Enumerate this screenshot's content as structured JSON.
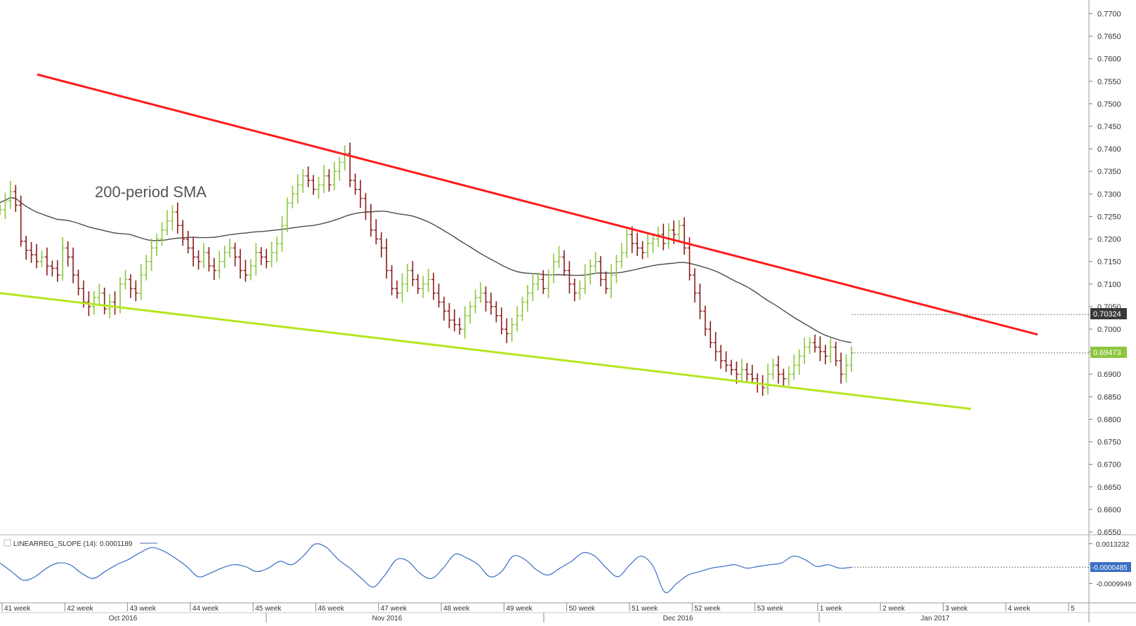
{
  "chart_data": [
    {
      "type": "candlestick",
      "symbol_hint": "",
      "y_ticks": [
        "0.7700",
        "0.7650",
        "0.7600",
        "0.7550",
        "0.7500",
        "0.7450",
        "0.7400",
        "0.7350",
        "0.7300",
        "0.7250",
        "0.7200",
        "0.7150",
        "0.7100",
        "0.7050",
        "0.7000",
        "0.6950",
        "0.6900",
        "0.6850",
        "0.6800",
        "0.6750",
        "0.6700",
        "0.6650",
        "0.6600",
        "0.6550"
      ],
      "ylim": [
        0.655,
        0.771
      ],
      "annotation": "200-period SMA",
      "last_price": "0.69473",
      "sma_value": "0.70324",
      "colors": {
        "up": "#8cc63f",
        "down": "#8b1a1a",
        "sma": "#4a4a4a",
        "resistance": "#ff1a1a",
        "support": "#b4e61e",
        "last_price_box": "#8cc63f",
        "sma_box": "#3a3a3a"
      },
      "trendlines": [
        {
          "name": "resistance",
          "points": [
            [
              "41 week +0.6",
              0.7565
            ],
            [
              "4 week +0.4",
              0.6988
            ]
          ]
        },
        {
          "name": "support",
          "points": [
            [
              "41 week",
              0.708
            ],
            [
              "3 week +0.2",
              0.6823
            ]
          ]
        }
      ],
      "price_path": [
        0.7265,
        0.7285,
        0.7305,
        0.7275,
        0.7195,
        0.7175,
        0.7165,
        0.715,
        0.716,
        0.714,
        0.7135,
        0.712,
        0.718,
        0.716,
        0.712,
        0.709,
        0.706,
        0.705,
        0.707,
        0.708,
        0.7045,
        0.706,
        0.705,
        0.71,
        0.711,
        0.709,
        0.708,
        0.712,
        0.715,
        0.718,
        0.72,
        0.722,
        0.724,
        0.726,
        0.723,
        0.72,
        0.718,
        0.716,
        0.715,
        0.717,
        0.714,
        0.713,
        0.715,
        0.717,
        0.718,
        0.716,
        0.713,
        0.712,
        0.714,
        0.717,
        0.716,
        0.715,
        0.717,
        0.719,
        0.723,
        0.728,
        0.73,
        0.732,
        0.734,
        0.733,
        0.731,
        0.732,
        0.734,
        0.732,
        0.735,
        0.737,
        0.739,
        0.733,
        0.731,
        0.729,
        0.726,
        0.722,
        0.72,
        0.718,
        0.713,
        0.709,
        0.708,
        0.71,
        0.713,
        0.711,
        0.709,
        0.71,
        0.711,
        0.708,
        0.706,
        0.704,
        0.702,
        0.701,
        0.7,
        0.703,
        0.705,
        0.707,
        0.708,
        0.706,
        0.705,
        0.703,
        0.7,
        0.699,
        0.701,
        0.703,
        0.706,
        0.708,
        0.71,
        0.711,
        0.709,
        0.712,
        0.715,
        0.716,
        0.713,
        0.71,
        0.708,
        0.709,
        0.712,
        0.714,
        0.715,
        0.711,
        0.709,
        0.712,
        0.715,
        0.717,
        0.721,
        0.719,
        0.718,
        0.717,
        0.719,
        0.72,
        0.721,
        0.719,
        0.722,
        0.721,
        0.723,
        0.718,
        0.712,
        0.708,
        0.704,
        0.7,
        0.697,
        0.695,
        0.693,
        0.692,
        0.691,
        0.69,
        0.691,
        0.69,
        0.689,
        0.688,
        0.687,
        0.69,
        0.692,
        0.69,
        0.689,
        0.69,
        0.692,
        0.694,
        0.696,
        0.697,
        0.696,
        0.695,
        0.694,
        0.696,
        0.693,
        0.69,
        0.692,
        0.6947
      ]
    },
    {
      "type": "line",
      "indicator_label": "LINEARREG_SLOPE (14): 0.0001189",
      "y_ticks": [
        "0.0013232",
        "0.0001189",
        "-0.0009949"
      ],
      "ylim": [
        -0.002,
        0.0016
      ],
      "last_value": "-0.0000485",
      "color": "#3a6fc4",
      "values": [
        0.0002,
        -0.0003,
        -0.0008,
        -0.0006,
        -0.0001,
        0.0002,
        0.0001,
        -0.0004,
        -0.0007,
        -0.0003,
        0.0001,
        0.0004,
        0.0008,
        0.0011,
        0.0009,
        0.0005,
        0.0,
        -0.0006,
        -0.0004,
        -0.0001,
        0.0001,
        0.0,
        -0.0003,
        -0.0001,
        0.0003,
        0.0001,
        0.0006,
        0.0013,
        0.0011,
        0.0004,
        -0.0001,
        -0.0007,
        -0.0012,
        -0.0005,
        0.0004,
        0.0003,
        -0.0004,
        -0.0007,
        -0.0001,
        0.0007,
        0.0005,
        0.0001,
        -0.0006,
        -0.0003,
        0.0006,
        0.0004,
        -0.0002,
        -0.0005,
        -0.0001,
        0.0003,
        0.0008,
        0.0006,
        -0.0001,
        -0.0006,
        0.0001,
        0.0006,
        0.0,
        -0.0015,
        -0.001,
        -0.0005,
        -0.0003,
        -0.0001,
        0.0,
        0.0001,
        -0.0001,
        0.0,
        0.0001,
        0.0002,
        0.0006,
        0.0004,
        0.0,
        0.0001,
        -0.0001,
        -5e-05
      ]
    }
  ],
  "x_axis": {
    "week_labels": [
      "41 week",
      "42 week",
      "43 week",
      "44 week",
      "45 week",
      "46 week",
      "47 week",
      "48 week",
      "49 week",
      "50 week",
      "51 week",
      "52 week",
      "53 week",
      "1 week",
      "2 week",
      "3 week",
      "4 week",
      "5"
    ],
    "month_labels": [
      "Oct 2016",
      "Nov 2016",
      "Dec 2016",
      "Jan 2017"
    ]
  }
}
